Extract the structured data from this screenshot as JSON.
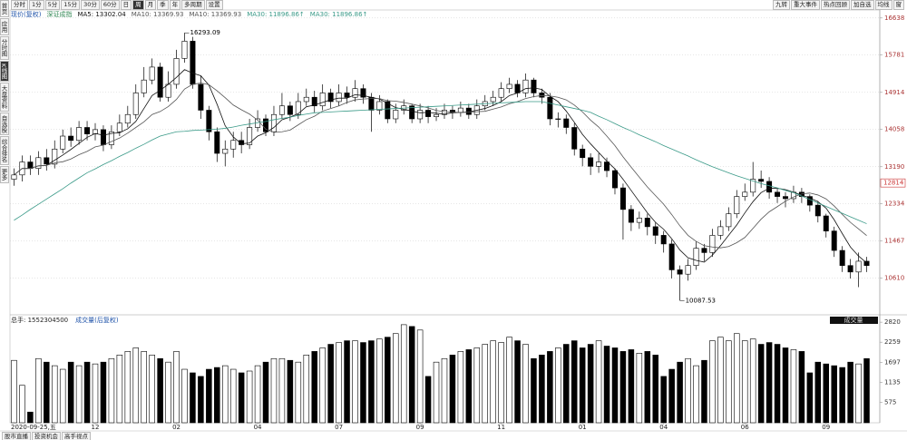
{
  "ui": {
    "toolbar": [
      "分时",
      "1分",
      "5分",
      "15分",
      "30分",
      "60分",
      "日",
      "周",
      "月",
      "季",
      "年",
      "多周期",
      "设置"
    ],
    "toolbar_selected": 7,
    "toolbar_right": [
      "九转",
      "重大事件",
      "热点回顾",
      "加自选",
      "均线",
      "窗"
    ],
    "sidebar": [
      "首页",
      "应用",
      "分时图",
      "K线图",
      "大盘资料",
      "自选股",
      "综合排名",
      "更多"
    ],
    "sidebar_selected": 3,
    "tabs": [
      "股市直播",
      "投资机会",
      "高手视点"
    ]
  },
  "chart_data": [
    {
      "type": "candlestick",
      "title": "现价(复权)",
      "subtitle": "深证成指",
      "ylim": [
        9800,
        16760
      ],
      "yticks": [
        10610,
        11467,
        12334,
        13190,
        14058,
        14914,
        15781,
        16638
      ],
      "grid": true,
      "current_price": 12814,
      "open": [
        12900,
        13000,
        13300,
        13150,
        13400,
        13250,
        13600,
        13900,
        13800,
        14100,
        13950,
        14050,
        13700,
        14000,
        14200,
        14400,
        14900,
        15200,
        15500,
        14800,
        15100,
        15700,
        16100,
        15100,
        14500,
        14000,
        13500,
        13600,
        13800,
        13700,
        14100,
        14300,
        14000,
        14400,
        14600,
        14400,
        14700,
        14800,
        14600,
        14900,
        14700,
        14900,
        14800,
        15000,
        14800,
        14500,
        14700,
        14300,
        14500,
        14600,
        14300,
        14500,
        14350,
        14400,
        14500,
        14450,
        14550,
        14400,
        14600,
        14700,
        14800,
        15000,
        15100,
        14900,
        15200,
        14900,
        14800,
        14300,
        14300,
        14100,
        13600,
        13400,
        13200,
        13300,
        13100,
        12700,
        12200,
        11900,
        12000,
        11800,
        11600,
        11400,
        10800,
        10700,
        10900,
        11300,
        11200,
        11600,
        11800,
        12100,
        12500,
        12600,
        12900,
        12850,
        12600,
        12500,
        12450,
        12600,
        12500,
        12300,
        12050,
        11700,
        11250,
        10900,
        10750,
        11000
      ],
      "high": [
        13150,
        13450,
        13450,
        13550,
        13600,
        13800,
        14050,
        14100,
        14250,
        14250,
        14200,
        14150,
        14150,
        14400,
        14600,
        15100,
        15500,
        15700,
        15600,
        15400,
        15900,
        16293.09,
        16200,
        15300,
        14600,
        14100,
        13800,
        14000,
        14000,
        14300,
        14500,
        14400,
        14600,
        14900,
        14700,
        14900,
        15000,
        14950,
        15100,
        15000,
        15100,
        15050,
        15200,
        15100,
        14900,
        14850,
        14750,
        14650,
        14750,
        14650,
        14650,
        14600,
        14550,
        14650,
        14600,
        14700,
        14650,
        14750,
        14850,
        14950,
        15150,
        15250,
        15200,
        15350,
        15250,
        15000,
        14900,
        14450,
        14400,
        14200,
        13700,
        13500,
        13500,
        13400,
        13150,
        12800,
        12300,
        12150,
        12100,
        11900,
        11700,
        11500,
        10900,
        11050,
        11450,
        11400,
        11750,
        11950,
        12250,
        12650,
        12800,
        13300,
        13100,
        12950,
        12700,
        12600,
        12750,
        12700,
        12550,
        12400,
        12100,
        11800,
        11350,
        11050,
        11200,
        11100
      ],
      "low": [
        12750,
        12850,
        13000,
        13000,
        13100,
        13150,
        13500,
        13650,
        13700,
        13800,
        13800,
        13550,
        13600,
        13900,
        14100,
        14300,
        14800,
        15100,
        14700,
        14700,
        15000,
        15600,
        15000,
        14300,
        13800,
        13300,
        13200,
        13400,
        13500,
        13600,
        14000,
        13900,
        13900,
        14300,
        14250,
        14300,
        14600,
        14450,
        14500,
        14550,
        14600,
        14650,
        14700,
        14650,
        14000,
        14400,
        14200,
        14200,
        14400,
        14200,
        14200,
        14200,
        14250,
        14300,
        14300,
        14350,
        14300,
        14300,
        14500,
        14600,
        14700,
        14900,
        14800,
        14800,
        14800,
        14650,
        14150,
        14100,
        13950,
        13450,
        13200,
        13000,
        13050,
        12950,
        12550,
        11500,
        11700,
        11750,
        11600,
        11400,
        11200,
        10600,
        10087.53,
        10550,
        10800,
        11000,
        11100,
        11500,
        11700,
        12000,
        12400,
        12500,
        12700,
        12450,
        12350,
        12250,
        12350,
        12350,
        12150,
        11900,
        11550,
        11100,
        10750,
        10600,
        10400,
        10750
      ],
      "close": [
        13000,
        13300,
        13150,
        13400,
        13250,
        13600,
        13900,
        13800,
        14100,
        13950,
        14050,
        13700,
        14000,
        14200,
        14400,
        14900,
        15200,
        15500,
        14800,
        15100,
        15700,
        16100,
        15100,
        14500,
        14000,
        13500,
        13600,
        13800,
        13700,
        14100,
        14300,
        14000,
        14400,
        14600,
        14400,
        14700,
        14800,
        14600,
        14900,
        14700,
        14900,
        14800,
        15000,
        14800,
        14500,
        14700,
        14300,
        14500,
        14600,
        14300,
        14500,
        14350,
        14400,
        14500,
        14450,
        14550,
        14400,
        14600,
        14700,
        14800,
        15000,
        15100,
        14900,
        15200,
        14900,
        14800,
        14300,
        14300,
        14100,
        13600,
        13400,
        13200,
        13300,
        13100,
        12700,
        12200,
        11900,
        12000,
        11800,
        11600,
        11400,
        10800,
        10700,
        10900,
        11300,
        11200,
        11600,
        11800,
        12100,
        12500,
        12600,
        12900,
        12850,
        12600,
        12500,
        12450,
        12600,
        12500,
        12300,
        12050,
        11700,
        11250,
        10900,
        10750,
        11000,
        10900
      ],
      "series": [
        {
          "name": "MA5: 13302.04",
          "color": "#111111",
          "values": [
            13000,
            13150,
            13150,
            13210,
            13220,
            13340,
            13460,
            13590,
            13730,
            13870,
            13960,
            13920,
            13960,
            13980,
            14070,
            14240,
            14540,
            14840,
            14960,
            15100,
            15260,
            15440,
            15360,
            15300,
            15080,
            14640,
            14140,
            13880,
            13720,
            13740,
            13900,
            13980,
            14100,
            14280,
            14340,
            14420,
            14580,
            14620,
            14680,
            14740,
            14780,
            14780,
            14860,
            14840,
            14800,
            14760,
            14660,
            14560,
            14520,
            14480,
            14440,
            14450,
            14430,
            14410,
            14440,
            14450,
            14460,
            14500,
            14540,
            14610,
            14700,
            14840,
            14900,
            15000,
            15020,
            14980,
            14820,
            14700,
            14480,
            14220,
            13940,
            13720,
            13520,
            13320,
            13140,
            12900,
            12640,
            12380,
            12120,
            11900,
            11740,
            11520,
            11260,
            11080,
            11020,
            10980,
            11140,
            11360,
            11600,
            11840,
            12120,
            12380,
            12590,
            12690,
            12690,
            12660,
            12600,
            12530,
            12470,
            12380,
            12230,
            11960,
            11640,
            11330,
            11120,
            10960
          ]
        },
        {
          "name": "MA10: 13369.93",
          "color": "#555555",
          "values": [
            13000,
            13150,
            13150,
            13210,
            13220,
            13280,
            13305,
            13370,
            13470,
            13545,
            13650,
            13690,
            13775,
            13855,
            13970,
            14100,
            14230,
            14400,
            14470,
            14585,
            14750,
            14990,
            15100,
            15130,
            15090,
            14950,
            14790,
            14620,
            14510,
            14410,
            14270,
            14060,
            13990,
            14000,
            14040,
            14160,
            14280,
            14360,
            14480,
            14540,
            14600,
            14680,
            14740,
            14760,
            14770,
            14770,
            14720,
            14710,
            14680,
            14640,
            14600,
            14555,
            14495,
            14465,
            14460,
            14445,
            14455,
            14465,
            14475,
            14525,
            14575,
            14650,
            14700,
            14770,
            14815,
            14840,
            14830,
            14800,
            14740,
            14620,
            14460,
            14270,
            14110,
            13900,
            13680,
            13420,
            13180,
            12950,
            12720,
            12520,
            12320,
            12080,
            11820,
            11600,
            11460,
            11360,
            11330,
            11310,
            11340,
            11430,
            11550,
            11760,
            11975,
            12145,
            12265,
            12390,
            12490,
            12560,
            12580,
            12535,
            12445,
            12280,
            12085,
            11900,
            11750,
            11595
          ]
        },
        {
          "name": "MA30: 11896.86↑",
          "color": "#3a9a88",
          "values": [
            11950,
            12070,
            12200,
            12320,
            12440,
            12560,
            12680,
            12810,
            12930,
            13050,
            13140,
            13240,
            13330,
            13430,
            13520,
            13620,
            13710,
            13810,
            13900,
            13950,
            14000,
            14010,
            14030,
            14040,
            14050,
            14060,
            14080,
            14110,
            14150,
            14180,
            14210,
            14240,
            14280,
            14310,
            14340,
            14380,
            14410,
            14440,
            14450,
            14460,
            14470,
            14480,
            14490,
            14500,
            14510,
            14520,
            14530,
            14540,
            14550,
            14560,
            14570,
            14580,
            14590,
            14600,
            14610,
            14620,
            14630,
            14640,
            14650,
            14660,
            14670,
            14680,
            14690,
            14700,
            14700,
            14700,
            14660,
            14620,
            14580,
            14540,
            14500,
            14450,
            14360,
            14280,
            14190,
            14100,
            14020,
            13930,
            13850,
            13770,
            13680,
            13600,
            13520,
            13440,
            13350,
            13270,
            13190,
            13120,
            13050,
            12980,
            12920,
            12860,
            12800,
            12750,
            12700,
            12640,
            12590,
            12510,
            12430,
            12350,
            12270,
            12190,
            12110,
            12030,
            11950,
            11870
          ]
        }
      ],
      "legend_repeat": [
        "MA10: 13369.93",
        "MA30: 11896.86↑"
      ]
    },
    {
      "type": "bar",
      "title": "总手: 1552304500",
      "subtitle": "成交量(后复权)",
      "tag": "成交量",
      "ylim": [
        0,
        2900
      ],
      "yticks": [
        575,
        1135,
        1697,
        2259,
        2820
      ],
      "categories": [
        "2020-09-25,五",
        null,
        null,
        null,
        null,
        null,
        null,
        null,
        null,
        null,
        "12",
        null,
        null,
        null,
        null,
        null,
        null,
        null,
        null,
        null,
        "02",
        null,
        null,
        null,
        null,
        null,
        null,
        null,
        null,
        null,
        "04",
        null,
        null,
        null,
        null,
        null,
        null,
        null,
        null,
        null,
        "07",
        null,
        null,
        null,
        null,
        null,
        null,
        null,
        null,
        null,
        "09",
        null,
        null,
        null,
        null,
        null,
        null,
        null,
        null,
        null,
        "11",
        null,
        null,
        null,
        null,
        null,
        null,
        null,
        null,
        null,
        "01",
        null,
        null,
        null,
        null,
        null,
        null,
        null,
        null,
        null,
        "04",
        null,
        null,
        null,
        null,
        null,
        null,
        null,
        null,
        null,
        "06",
        null,
        null,
        null,
        null,
        null,
        null,
        null,
        null,
        null,
        "09",
        null,
        null,
        null,
        null,
        null
      ],
      "values": [
        1750,
        1050,
        300,
        1800,
        1700,
        1600,
        1500,
        1700,
        1600,
        1700,
        1650,
        1700,
        1800,
        1900,
        2000,
        2100,
        2000,
        1900,
        1800,
        1700,
        2000,
        1500,
        1400,
        1300,
        1500,
        1550,
        1600,
        1500,
        1400,
        1450,
        1600,
        1700,
        1800,
        1800,
        1750,
        1700,
        1900,
        2000,
        2100,
        2200,
        2250,
        2300,
        2300,
        2250,
        2300,
        2350,
        2400,
        2500,
        2750,
        2700,
        2600,
        1300,
        1700,
        1800,
        1900,
        2000,
        2050,
        2100,
        2200,
        2300,
        2250,
        2400,
        2300,
        2200,
        1800,
        1900,
        2000,
        2100,
        2200,
        2300,
        2100,
        2200,
        2300,
        2150,
        2100,
        2000,
        2050,
        1950,
        2000,
        1900,
        1300,
        1500,
        1700,
        1800,
        1600,
        1750,
        2300,
        2400,
        2300,
        2500,
        2300,
        2350,
        2200,
        2250,
        2200,
        2100,
        2050,
        2000,
        1400,
        1700,
        1650,
        1600,
        1550,
        1700,
        1650,
        1800
      ]
    }
  ]
}
